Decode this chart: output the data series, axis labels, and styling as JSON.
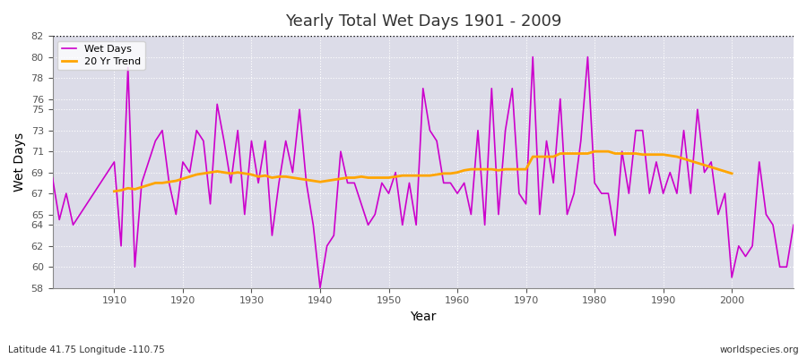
{
  "title": "Yearly Total Wet Days 1901 - 2009",
  "xlabel": "Year",
  "ylabel": "Wet Days",
  "bottom_left_label": "Latitude 41.75 Longitude -110.75",
  "bottom_right_label": "worldspecies.org",
  "ylim": [
    58,
    82
  ],
  "background_color": "#ffffff",
  "plot_background_color": "#e0e0e8",
  "wet_days_color": "#cc00cc",
  "trend_color": "#FFA500",
  "wet_days_label": "Wet Days",
  "trend_label": "20 Yr Trend",
  "years": [
    1901,
    1902,
    1903,
    1904,
    1905,
    1906,
    1907,
    1908,
    1909,
    1910,
    1911,
    1912,
    1913,
    1914,
    1915,
    1916,
    1917,
    1918,
    1919,
    1920,
    1921,
    1922,
    1923,
    1924,
    1925,
    1926,
    1927,
    1928,
    1929,
    1930,
    1931,
    1932,
    1933,
    1934,
    1935,
    1936,
    1937,
    1938,
    1939,
    1940,
    1941,
    1942,
    1943,
    1944,
    1945,
    1946,
    1947,
    1948,
    1949,
    1950,
    1951,
    1952,
    1953,
    1954,
    1955,
    1956,
    1957,
    1958,
    1959,
    1960,
    1961,
    1962,
    1963,
    1964,
    1965,
    1966,
    1967,
    1968,
    1969,
    1970,
    1971,
    1972,
    1973,
    1974,
    1975,
    1976,
    1977,
    1978,
    1979,
    1980,
    1981,
    1982,
    1983,
    1984,
    1985,
    1986,
    1987,
    1988,
    1989,
    1990,
    1991,
    1992,
    1993,
    1994,
    1995,
    1996,
    1997,
    1998,
    1999,
    2000,
    2001,
    2002,
    2003,
    2004,
    2005,
    2006,
    2007,
    2008,
    2009
  ],
  "wet_days": [
    68.5,
    64.5,
    67,
    64,
    65,
    66,
    67,
    68,
    69,
    70,
    62,
    79,
    60,
    68,
    70,
    72,
    73,
    68,
    65,
    70,
    69,
    73,
    72,
    66,
    75.5,
    72,
    68,
    73,
    65,
    72,
    68,
    72,
    63,
    68,
    72,
    69,
    75,
    68,
    64,
    58,
    62,
    63,
    71,
    68,
    68,
    66,
    64,
    65,
    68,
    67,
    69,
    64,
    68,
    64,
    77,
    73,
    72,
    68,
    68,
    67,
    68,
    65,
    73,
    64,
    77,
    65,
    73,
    77,
    67,
    66,
    80,
    65,
    72,
    68,
    76,
    65,
    67,
    72,
    80,
    68,
    67,
    67,
    63,
    71,
    67,
    73,
    73,
    67,
    70,
    67,
    69,
    67,
    73,
    67,
    75,
    69,
    70,
    65,
    67,
    59,
    62,
    61,
    62,
    70,
    65,
    64,
    60,
    60,
    64
  ],
  "trend_years": [
    1910,
    1911,
    1912,
    1913,
    1914,
    1915,
    1916,
    1917,
    1918,
    1919,
    1920,
    1921,
    1922,
    1923,
    1924,
    1925,
    1926,
    1927,
    1928,
    1929,
    1930,
    1931,
    1932,
    1933,
    1934,
    1935,
    1936,
    1937,
    1938,
    1939,
    1940,
    1941,
    1942,
    1943,
    1944,
    1945,
    1946,
    1947,
    1948,
    1949,
    1950,
    1951,
    1952,
    1953,
    1954,
    1955,
    1956,
    1957,
    1958,
    1959,
    1960,
    1961,
    1962,
    1963,
    1964,
    1965,
    1966,
    1967,
    1968,
    1969,
    1970,
    1971,
    1972,
    1973,
    1974,
    1975,
    1976,
    1977,
    1978,
    1979,
    1980,
    1981,
    1982,
    1983,
    1984,
    1985,
    1986,
    1987,
    1988,
    1989,
    1990,
    1991,
    1992,
    1993,
    1994,
    1995,
    1996,
    1997,
    1998,
    1999,
    2000
  ],
  "trend_values": [
    67.2,
    67.3,
    67.5,
    67.4,
    67.6,
    67.8,
    68.0,
    68.0,
    68.1,
    68.2,
    68.4,
    68.6,
    68.8,
    68.9,
    69.0,
    69.1,
    69.0,
    68.9,
    69.0,
    68.9,
    68.8,
    68.6,
    68.7,
    68.5,
    68.6,
    68.6,
    68.5,
    68.4,
    68.3,
    68.2,
    68.1,
    68.2,
    68.3,
    68.4,
    68.5,
    68.5,
    68.6,
    68.5,
    68.5,
    68.5,
    68.5,
    68.6,
    68.7,
    68.7,
    68.7,
    68.7,
    68.7,
    68.8,
    68.9,
    68.9,
    69.0,
    69.2,
    69.3,
    69.3,
    69.3,
    69.3,
    69.2,
    69.3,
    69.3,
    69.3,
    69.3,
    70.5,
    70.5,
    70.5,
    70.5,
    70.8,
    70.8,
    70.8,
    70.8,
    70.8,
    71.0,
    71.0,
    71.0,
    70.8,
    70.8,
    70.8,
    70.8,
    70.7,
    70.7,
    70.7,
    70.7,
    70.6,
    70.5,
    70.3,
    70.1,
    69.9,
    69.7,
    69.5,
    69.3,
    69.1,
    68.9
  ]
}
